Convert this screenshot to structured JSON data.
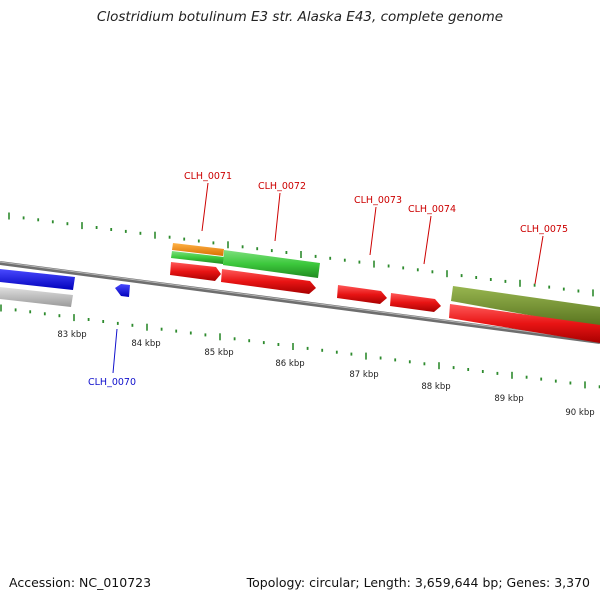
{
  "title": "Clostridium botulinum E3 str. Alaska E43, complete genome",
  "footer": {
    "accession": "Accession: NC_010723",
    "summary": "Topology: circular; Length: 3,659,644 bp; Genes: 3,370"
  },
  "scale_labels": [
    "83 kbp",
    "84 kbp",
    "85 kbp",
    "86 kbp",
    "87 kbp",
    "88 kbp",
    "89 kbp",
    "90 kbp"
  ],
  "gene_labels": [
    "CLH_0070",
    "CLH_0071",
    "CLH_0072",
    "CLH_0073",
    "CLH_0074",
    "CLH_0075"
  ],
  "colors": {
    "backbone": "#808080",
    "ticks": "#2e8b2e",
    "cds_forward": "#e01010",
    "label_red": "#cc0000",
    "label_blue": "#1010cc",
    "blue_feature": "#1a1ae6",
    "gray_feature": "#b0b0b0",
    "orange_feature": "#f08a00",
    "green_feature": "#3cc83c",
    "olive_feature": "#6e8f28"
  }
}
